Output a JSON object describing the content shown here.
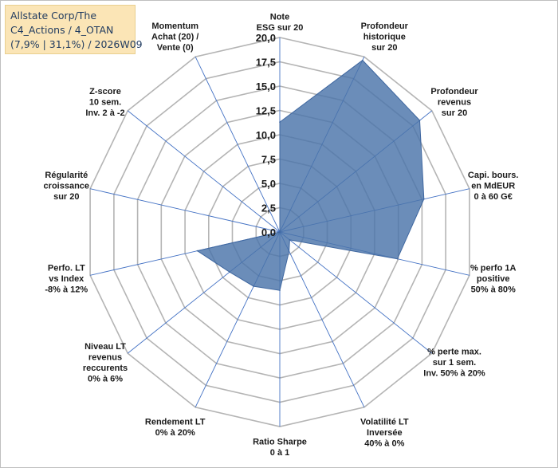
{
  "header": {
    "lines": [
      "Allstate Corp/The",
      "C4_Actions / 4_OTAN",
      "(7,9% | 31,1%) / 2026W09"
    ]
  },
  "chart_data": {
    "type": "radar",
    "rmax": 20,
    "tick_step": 2.5,
    "tick_labels": [
      "0,0",
      "2,5",
      "5,0",
      "7,5",
      "10,0",
      "12,5",
      "15,0",
      "17,5",
      "20,0"
    ],
    "axes": [
      [
        "Note",
        "ESG sur 20"
      ],
      [
        "Profondeur",
        "historique",
        "sur 20"
      ],
      [
        "Profondeur",
        "revenus",
        "sur 20"
      ],
      [
        "Capi. bours.",
        "en MdEUR",
        "0 à 60 G€"
      ],
      [
        "% perfo 1A",
        "positive",
        "50% à 80%"
      ],
      [
        "% perte max.",
        "sur 1 sem.",
        "Inv. 50% à 20%"
      ],
      [
        "Volatilité LT",
        "Inversée",
        "40% à 0%"
      ],
      [
        "Ratio Sharpe",
        "0 à 1"
      ],
      [
        "Rendement LT",
        "0% à 20%"
      ],
      [
        "Niveau LT",
        "revenus",
        "reccurents",
        "0% à 6%"
      ],
      [
        "Perfo. LT",
        "vs Index",
        "-8% à 12%"
      ],
      [
        "Régularité",
        "croissance",
        "sur 20"
      ],
      [
        "Z-score",
        "10 sem.",
        "Inv. 2 à -2"
      ],
      [
        "Momentum",
        "Achat (20) /",
        "Vente (0)"
      ]
    ],
    "values": [
      11.3,
      19.6,
      18.4,
      15.2,
      12.4,
      1.3,
      2.2,
      6.0,
      6.2,
      6.6,
      8.7,
      0.0,
      0.0,
      0.0
    ],
    "colors": {
      "fill": "#4a74aa",
      "stroke": "#3f67a0",
      "grid": "#b4b4b4",
      "axis": "#4472c4"
    }
  }
}
